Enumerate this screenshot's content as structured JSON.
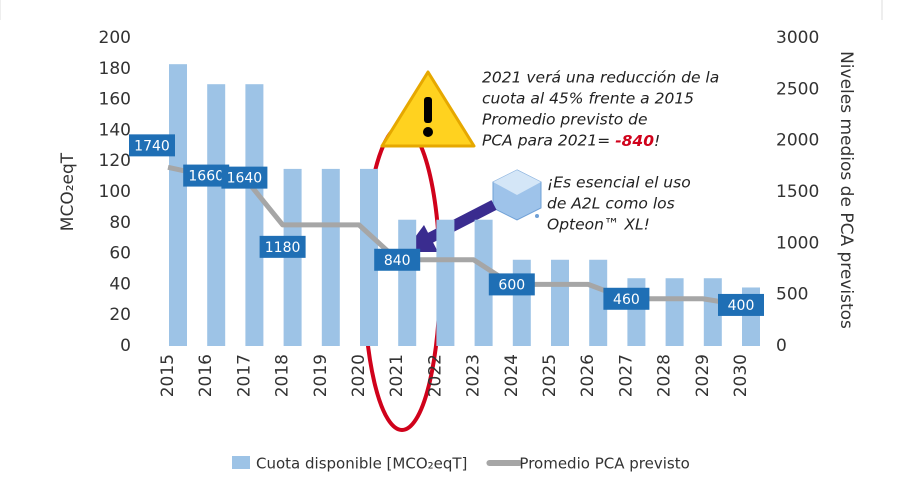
{
  "chart_data": {
    "type": "bar-line",
    "categories": [
      "2015",
      "2016",
      "2017",
      "2018",
      "2019",
      "2020",
      "2021",
      "2022",
      "2023",
      "2024",
      "2025",
      "2026",
      "2027",
      "2028",
      "2029",
      "2030"
    ],
    "series": [
      {
        "name": "Cuota disponible [MCO₂eqT]",
        "type": "bar",
        "color": "#9dc3e6",
        "values": [
          183,
          170,
          170,
          115,
          115,
          115,
          82,
          82,
          82,
          56,
          56,
          56,
          44,
          44,
          44,
          38
        ]
      },
      {
        "name": "Promedio PCA previsto",
        "type": "line",
        "axis": "y2",
        "color": "#a6a6a6",
        "values": [
          1740,
          1660,
          1640,
          1180,
          1180,
          1180,
          840,
          840,
          840,
          600,
          600,
          600,
          460,
          460,
          460,
          400
        ],
        "value_labels": [
          "1740",
          "1660",
          "1640",
          "1180",
          null,
          null,
          "840",
          null,
          null,
          "600",
          null,
          null,
          "460",
          null,
          null,
          "400"
        ]
      }
    ],
    "ylabel": "MCO₂eqT",
    "y2label": "Niveles medios de PCA previstos",
    "ylim": [
      0,
      200
    ],
    "yticks": [
      0,
      20,
      40,
      60,
      80,
      100,
      120,
      140,
      160,
      180,
      200
    ],
    "y2lim": [
      0,
      3000
    ],
    "y2ticks": [
      0,
      500,
      1000,
      1500,
      2000,
      2500,
      3000
    ],
    "annotations": [
      {
        "lines": [
          "2021 verá una reducción de la",
          "cuota al 45% frente a 2015",
          "Promedio previsto de",
          "PCA para 2021= "
        ],
        "highlight": "-840",
        "end": "!"
      },
      {
        "lines": [
          "¡Es esencial el uso",
          "de A2L como los",
          "Opteon™ XL!"
        ]
      }
    ],
    "legend": "bottom"
  }
}
